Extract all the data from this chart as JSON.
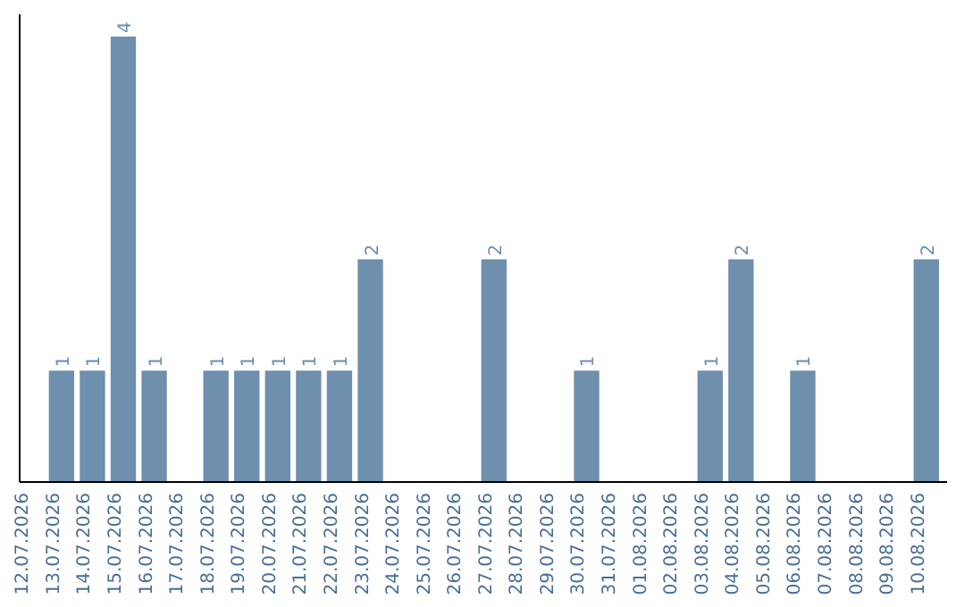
{
  "chart_data": {
    "type": "bar",
    "categories": [
      "12.07.2026",
      "13.07.2026",
      "14.07.2026",
      "15.07.2026",
      "16.07.2026",
      "17.07.2026",
      "18.07.2026",
      "19.07.2026",
      "20.07.2026",
      "21.07.2026",
      "22.07.2026",
      "23.07.2026",
      "24.07.2026",
      "25.07.2026",
      "26.07.2026",
      "27.07.2026",
      "28.07.2026",
      "29.07.2026",
      "30.07.2026",
      "31.07.2026",
      "01.08.2026",
      "02.08.2026",
      "03.08.2026",
      "04.08.2026",
      "05.08.2026",
      "06.08.2026",
      "07.08.2026",
      "08.08.2026",
      "09.08.2026",
      "10.08.2026"
    ],
    "values": [
      0,
      1,
      1,
      4,
      1,
      0,
      1,
      1,
      1,
      1,
      1,
      2,
      0,
      0,
      0,
      2,
      0,
      0,
      1,
      0,
      0,
      0,
      1,
      2,
      0,
      1,
      0,
      0,
      0,
      2
    ],
    "value_labels": [
      null,
      "1",
      "1",
      "4",
      "1",
      null,
      "1",
      "1",
      "1",
      "1",
      "1",
      "2",
      null,
      null,
      null,
      "2",
      null,
      null,
      "1",
      null,
      null,
      null,
      "1",
      "2",
      null,
      "1",
      null,
      null,
      null,
      "2"
    ],
    "color": "#6e8fad",
    "ylim": [
      0,
      4.2
    ],
    "tick_labels": "x"
  }
}
